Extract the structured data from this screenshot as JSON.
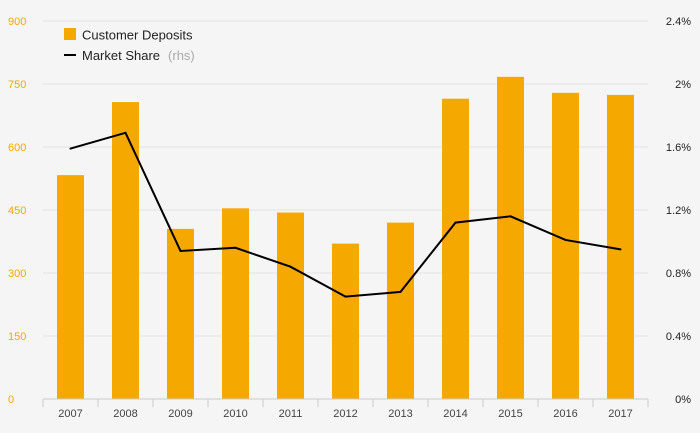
{
  "chart_data": {
    "type": "bar",
    "categories": [
      "2007",
      "2008",
      "2009",
      "2010",
      "2011",
      "2012",
      "2013",
      "2014",
      "2015",
      "2016",
      "2017"
    ],
    "series": [
      {
        "name": "Customer Deposits",
        "type": "bar",
        "axis": "left",
        "values": [
          533,
          707,
          405,
          454,
          444,
          370,
          420,
          715,
          767,
          729,
          724
        ]
      },
      {
        "name": "Market Share",
        "name_suffix": "(rhs)",
        "type": "line",
        "axis": "right",
        "values": [
          1.59,
          1.69,
          0.94,
          0.96,
          0.84,
          0.65,
          0.68,
          1.12,
          1.16,
          1.01,
          0.95
        ]
      }
    ],
    "y_left": {
      "ylim": [
        0,
        900
      ],
      "ticks": [
        "0",
        "150",
        "300",
        "450",
        "600",
        "750",
        "900"
      ]
    },
    "y_right": {
      "ylim": [
        0,
        2.4
      ],
      "ticks": [
        "0%",
        "0.4%",
        "0.8%",
        "1.2%",
        "1.6%",
        "2%",
        "2.4%"
      ]
    },
    "grid": true,
    "legend_position": "top-left",
    "colors": {
      "bar": "#f5a800",
      "line": "#000000",
      "grid": "#e3e3e3",
      "left_axis_text": "#f5a800"
    }
  }
}
